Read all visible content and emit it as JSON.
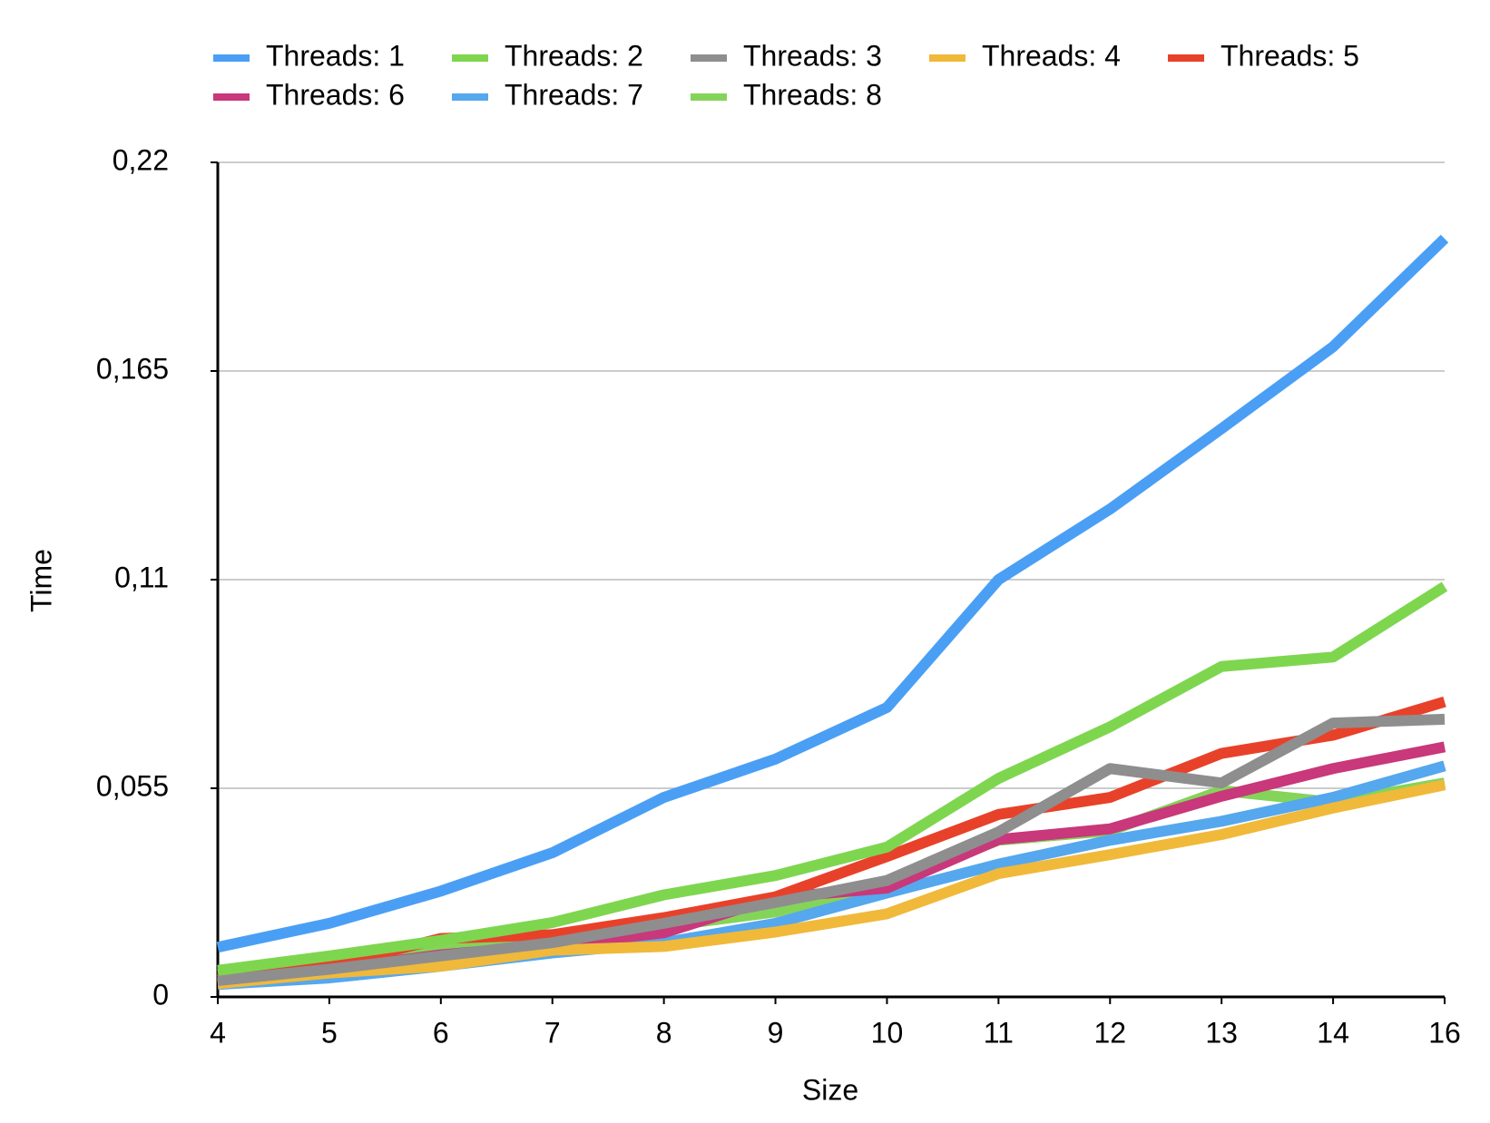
{
  "chart_data": {
    "type": "line",
    "x_label": "Size",
    "y_label": "Time",
    "categories": [
      "4",
      "5",
      "6",
      "7",
      "8",
      "9",
      "10",
      "11",
      "12",
      "13",
      "14",
      "16"
    ],
    "series": [
      {
        "name": "Threads: 1",
        "color": "#4a9ff5",
        "values": [
          0.0131,
          0.0194,
          0.0279,
          0.038,
          0.0526,
          0.0627,
          0.0763,
          0.11,
          0.1286,
          0.1498,
          0.1714,
          0.1999
        ]
      },
      {
        "name": "Threads: 2",
        "color": "#7ed64f",
        "values": [
          0.007,
          0.0108,
          0.0149,
          0.0196,
          0.0269,
          0.032,
          0.0395,
          0.0576,
          0.0712,
          0.0871,
          0.0896,
          0.1082
        ]
      },
      {
        "name": "Threads: 3",
        "color": "#8e8e8e",
        "values": [
          0.0043,
          0.0073,
          0.0108,
          0.0143,
          0.0194,
          0.0249,
          0.0307,
          0.0435,
          0.0602,
          0.0564,
          0.0722,
          0.0732
        ]
      },
      {
        "name": "Threads: 4",
        "color": "#f0b93a",
        "values": [
          0.0035,
          0.0063,
          0.0081,
          0.0123,
          0.0133,
          0.0171,
          0.0219,
          0.0325,
          0.0375,
          0.0428,
          0.0498,
          0.0559
        ]
      },
      {
        "name": "Threads: 5",
        "color": "#e8412a",
        "values": [
          0.0048,
          0.0081,
          0.0154,
          0.0164,
          0.0209,
          0.0264,
          0.037,
          0.0481,
          0.0526,
          0.0642,
          0.069,
          0.0778
        ]
      },
      {
        "name": "Threads: 6",
        "color": "#c8387a",
        "values": [
          0.0043,
          0.0073,
          0.0111,
          0.0136,
          0.0169,
          0.0262,
          0.0287,
          0.0415,
          0.0443,
          0.0529,
          0.0602,
          0.0659
        ]
      },
      {
        "name": "Threads: 7",
        "color": "#55a7ee",
        "values": [
          0.0033,
          0.005,
          0.0081,
          0.0116,
          0.0143,
          0.0194,
          0.0274,
          0.035,
          0.0413,
          0.0463,
          0.0526,
          0.0609
        ]
      },
      {
        "name": "Threads: 8",
        "color": "#84d459",
        "values": [
          0.006,
          0.0091,
          0.0136,
          0.0161,
          0.0186,
          0.0224,
          0.03,
          0.0413,
          0.0438,
          0.0544,
          0.0513,
          0.0564
        ]
      }
    ],
    "ylim": [
      0,
      0.22
    ],
    "yticks": [
      0,
      {
        "value": 0.055,
        "label": "0,055"
      },
      {
        "value": 0.11,
        "label": "0,11"
      },
      {
        "value": 0.165,
        "label": "0,165"
      },
      {
        "value": 0.22,
        "label": "0,22"
      }
    ],
    "grid": true,
    "legend": "top"
  }
}
